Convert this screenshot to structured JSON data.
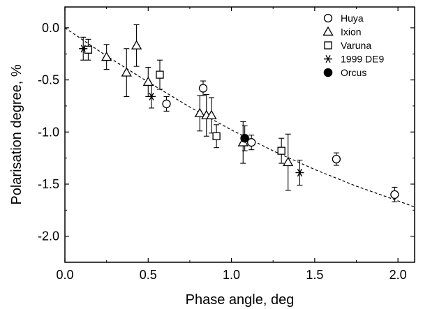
{
  "chart_data": {
    "type": "scatter",
    "title": "",
    "xlabel": "Phase angle, deg",
    "ylabel": "Polarisation degree, %",
    "xlim": [
      0.0,
      2.1
    ],
    "ylim": [
      -2.25,
      0.2
    ],
    "xticks": [
      0.0,
      0.5,
      1.0,
      1.5,
      2.0
    ],
    "xtick_labels": [
      "0.0",
      "0.5",
      "1.0",
      "1.5",
      "2.0"
    ],
    "yticks": [
      0.0,
      -0.5,
      -1.0,
      -1.5,
      -2.0
    ],
    "ytick_labels": [
      "0.0",
      "-0.5",
      "-1.0",
      "-1.5",
      "-2.0"
    ],
    "grid": false,
    "legend_position": "top-right",
    "fit_curve": {
      "style": "dashed",
      "x": [
        0.0,
        0.25,
        0.5,
        0.75,
        1.0,
        1.25,
        1.5,
        1.75,
        2.0,
        2.1
      ],
      "y": [
        0.0,
        -0.27,
        -0.52,
        -0.76,
        -0.98,
        -1.18,
        -1.36,
        -1.52,
        -1.66,
        -1.72
      ]
    },
    "series": [
      {
        "name": "Huya",
        "marker": "open-circle",
        "points": [
          {
            "x": 0.83,
            "y": -0.58,
            "err": 0.07
          },
          {
            "x": 0.61,
            "y": -0.73,
            "err": 0.07
          },
          {
            "x": 1.12,
            "y": -1.1,
            "err": 0.07
          },
          {
            "x": 1.63,
            "y": -1.26,
            "err": 0.06
          },
          {
            "x": 1.98,
            "y": -1.6,
            "err": 0.07
          }
        ]
      },
      {
        "name": "Ixion",
        "marker": "open-triangle",
        "points": [
          {
            "x": 0.25,
            "y": -0.28,
            "err": 0.12
          },
          {
            "x": 0.37,
            "y": -0.43,
            "err": 0.23
          },
          {
            "x": 0.43,
            "y": -0.17,
            "err": 0.2
          },
          {
            "x": 0.5,
            "y": -0.52,
            "err": 0.14
          },
          {
            "x": 0.81,
            "y": -0.82,
            "err": 0.17
          },
          {
            "x": 0.85,
            "y": -0.84,
            "err": 0.2
          },
          {
            "x": 0.88,
            "y": -0.84,
            "err": 0.17
          },
          {
            "x": 1.07,
            "y": -1.1,
            "err": 0.2
          },
          {
            "x": 1.34,
            "y": -1.29,
            "err": 0.27
          }
        ]
      },
      {
        "name": "Varuna",
        "marker": "open-square",
        "points": [
          {
            "x": 0.14,
            "y": -0.21,
            "err": 0.1
          },
          {
            "x": 0.57,
            "y": -0.45,
            "err": 0.14
          },
          {
            "x": 0.91,
            "y": -1.04,
            "err": 0.11
          },
          {
            "x": 1.3,
            "y": -1.18,
            "err": 0.12
          }
        ]
      },
      {
        "name": "1999 DE9",
        "marker": "asterisk",
        "points": [
          {
            "x": 0.11,
            "y": -0.2,
            "err": 0.11
          },
          {
            "x": 0.52,
            "y": -0.66,
            "err": 0.11
          },
          {
            "x": 1.41,
            "y": -1.39,
            "err": 0.12
          }
        ]
      },
      {
        "name": "Orcus",
        "marker": "filled-circle",
        "points": [
          {
            "x": 1.08,
            "y": -1.06,
            "err": 0.12
          }
        ]
      }
    ]
  }
}
